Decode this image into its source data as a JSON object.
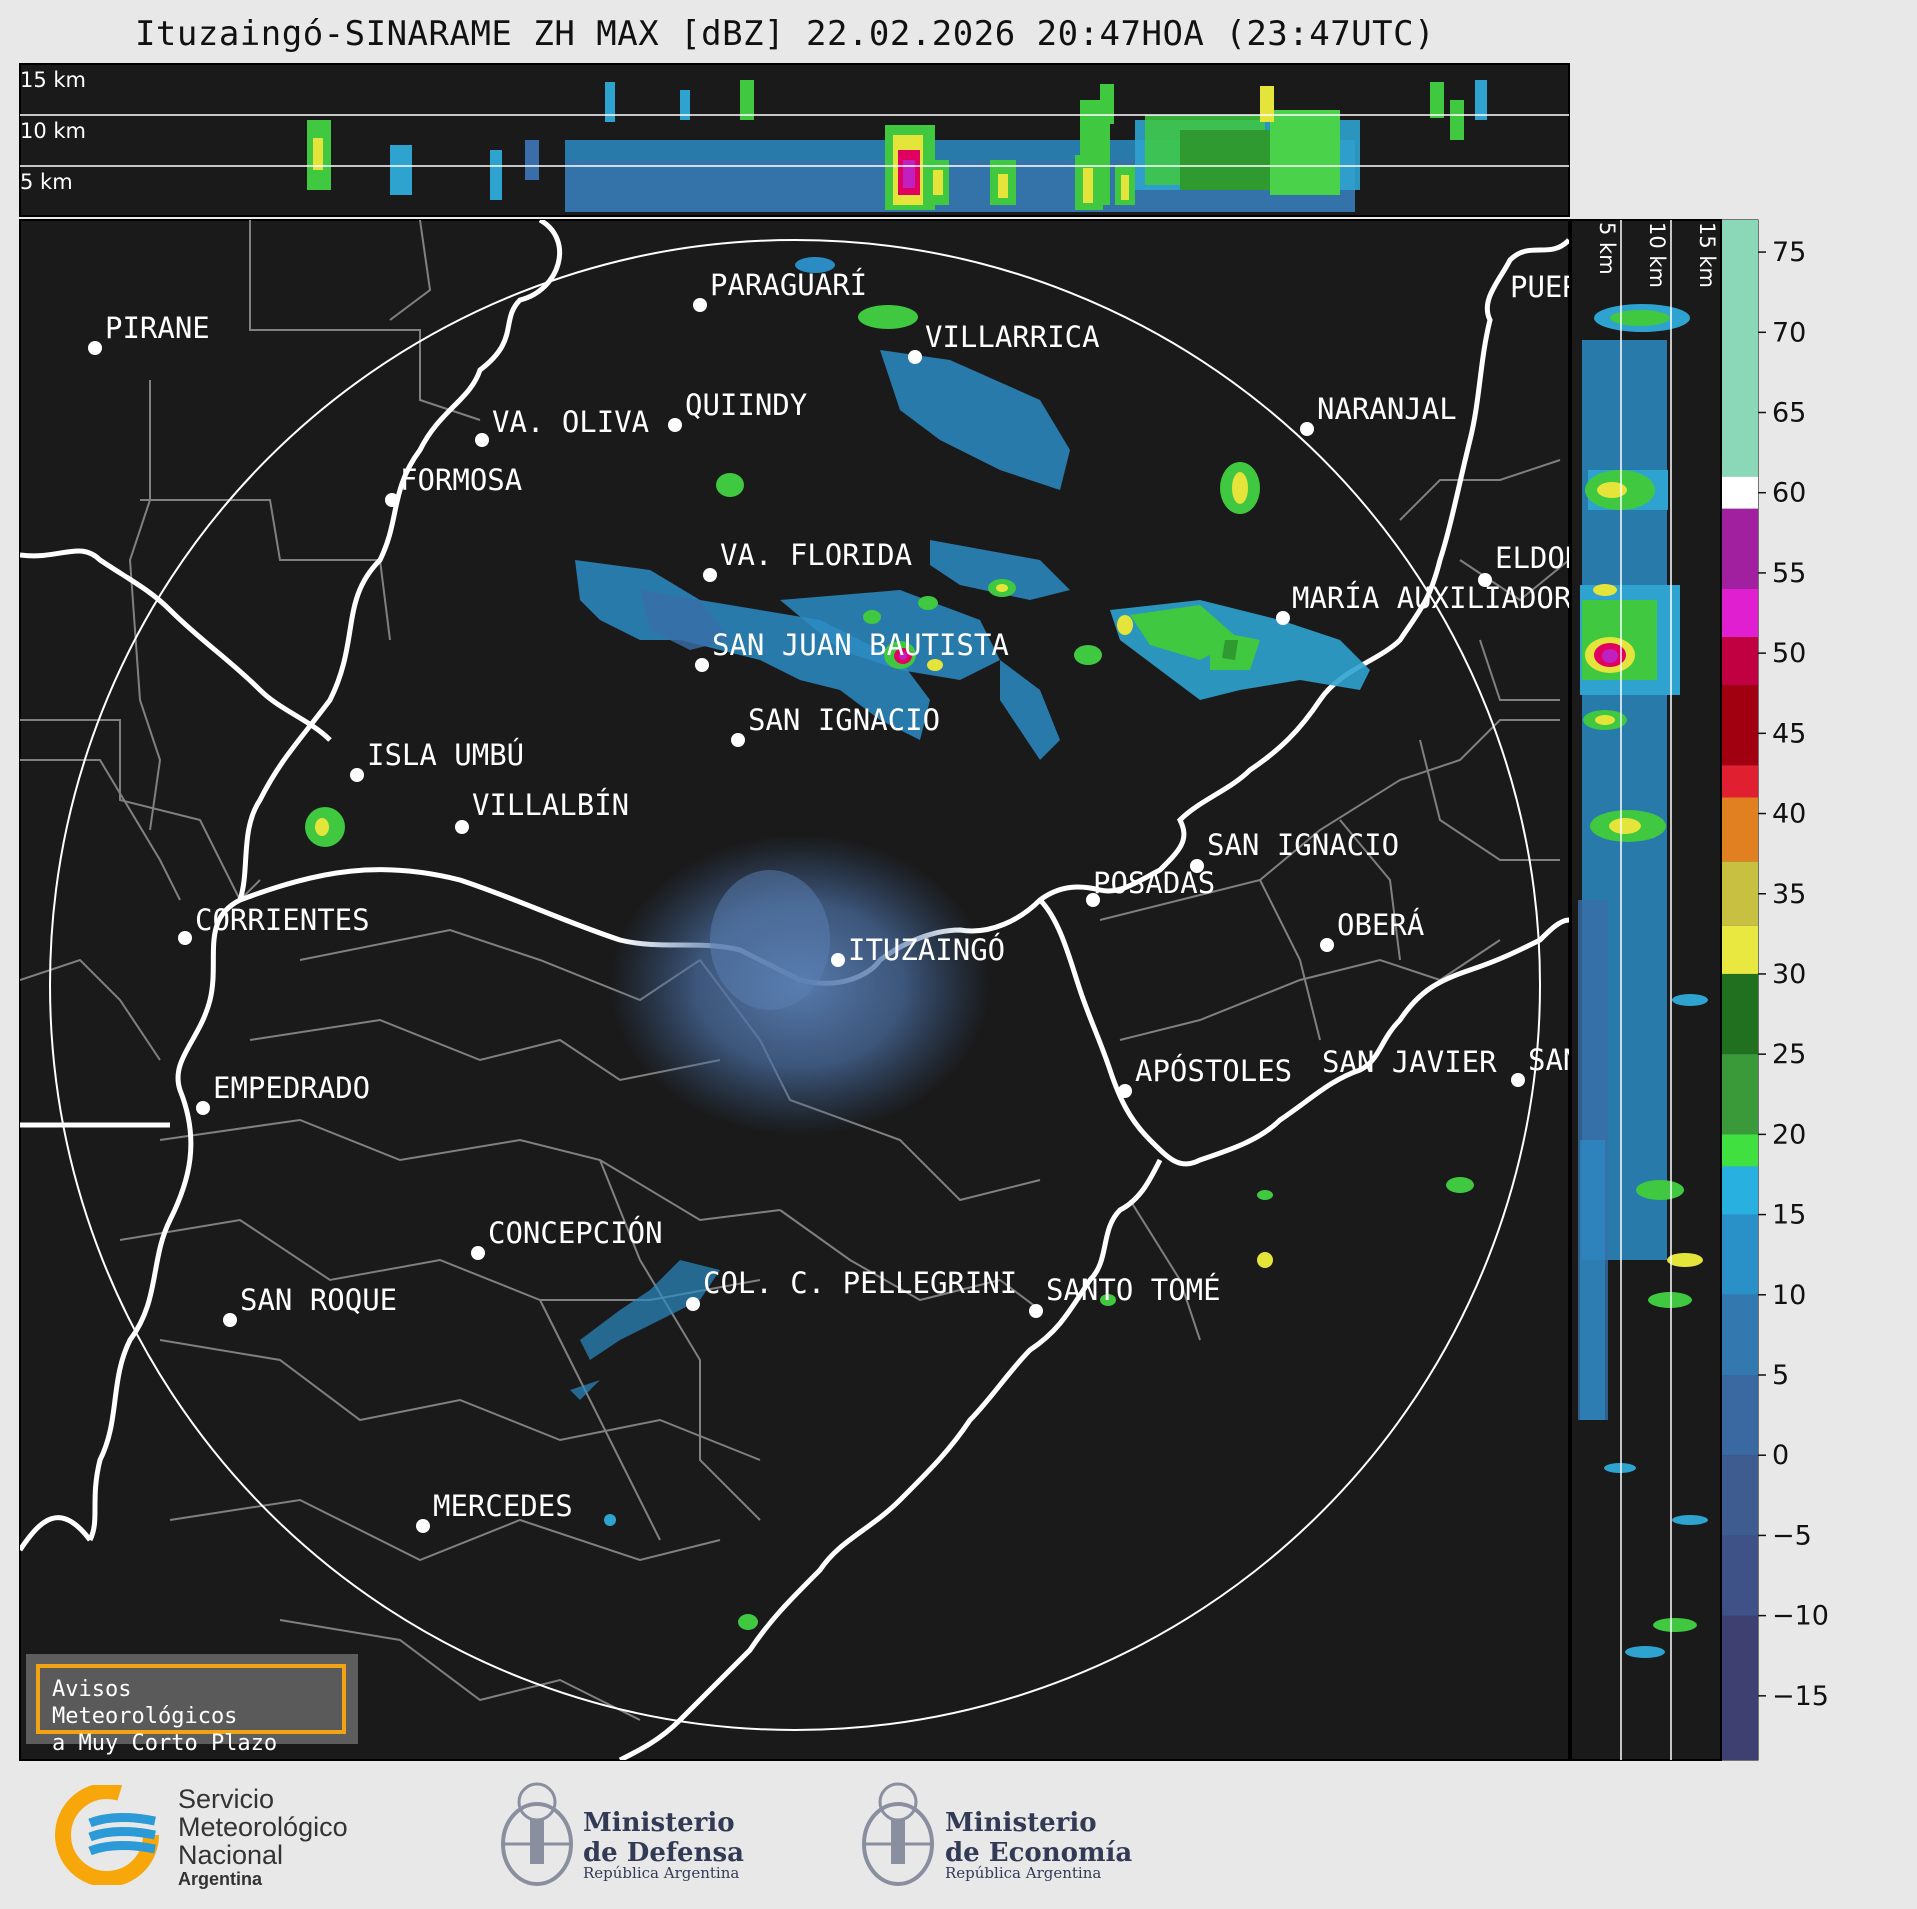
{
  "title": "Ituzaingó-SINARAME ZH MAX [dBZ] 22.02.2026 20:47HOA (23:47UTC)",
  "top_panel": {
    "km_labels": [
      "15 km",
      "10 km",
      "5 km"
    ]
  },
  "side_panel": {
    "km_labels": [
      "5 km",
      "10 km",
      "15 km"
    ]
  },
  "cities": [
    {
      "name": "PARAGUARÍ"
    },
    {
      "name": "PIRANE"
    },
    {
      "name": "VILLARRICA"
    },
    {
      "name": "VA. OLIVA"
    },
    {
      "name": "QUIINDY"
    },
    {
      "name": "NARANJAL"
    },
    {
      "name": "FORMOSA"
    },
    {
      "name": "VA. FLORIDA"
    },
    {
      "name": "ELDORADO"
    },
    {
      "name": "MARÍA AUXILIADORA"
    },
    {
      "name": "SAN JUAN BAUTISTA"
    },
    {
      "name": "SAN IGNACIO"
    },
    {
      "name": "ISLA UMBÚ"
    },
    {
      "name": "VILLALBÍN"
    },
    {
      "name": "SAN IGNACIO"
    },
    {
      "name": "POSADAS"
    },
    {
      "name": "CORRIENTES"
    },
    {
      "name": "ITUZAINGÓ"
    },
    {
      "name": "OBERÁ"
    },
    {
      "name": "EMPEDRADO"
    },
    {
      "name": "APÓSTOLES"
    },
    {
      "name": "SAN JAVIER"
    },
    {
      "name": "SAN JAVIER"
    },
    {
      "name": "CONCEPCIÓN"
    },
    {
      "name": "COL. C. PELLEGRINI"
    },
    {
      "name": "SANTO TOMÉ"
    },
    {
      "name": "SAN ROQUE"
    },
    {
      "name": "MERCEDES"
    },
    {
      "name": "PUERTO"
    }
  ],
  "colorbar": {
    "unit": "dBZ",
    "ticks": [
      "75",
      "70",
      "65",
      "60",
      "55",
      "50",
      "45",
      "40",
      "35",
      "30",
      "25",
      "20",
      "15",
      "10",
      "5",
      "0",
      "−5",
      "−10",
      "−15"
    ]
  },
  "avisos": {
    "line1": "Avisos Meteorológicos",
    "line2": "a Muy Corto Plazo"
  },
  "logos": {
    "smn": {
      "line1": "Servicio",
      "line2": "Meteorológico",
      "line3": "Nacional",
      "line4": "Argentina"
    },
    "defensa": {
      "line1": "Ministerio",
      "line2": "de Defensa",
      "line3": "República Argentina"
    },
    "economia": {
      "line1": "Ministerio",
      "line2": "de Economía",
      "line3": "República Argentina"
    }
  },
  "colors": {
    "map_bg": "#1a1a1a",
    "page_bg": "#e8e8e8",
    "range_ring": "#ffffff",
    "border_primary": "#ffffff",
    "border_secondary": "#808080"
  }
}
